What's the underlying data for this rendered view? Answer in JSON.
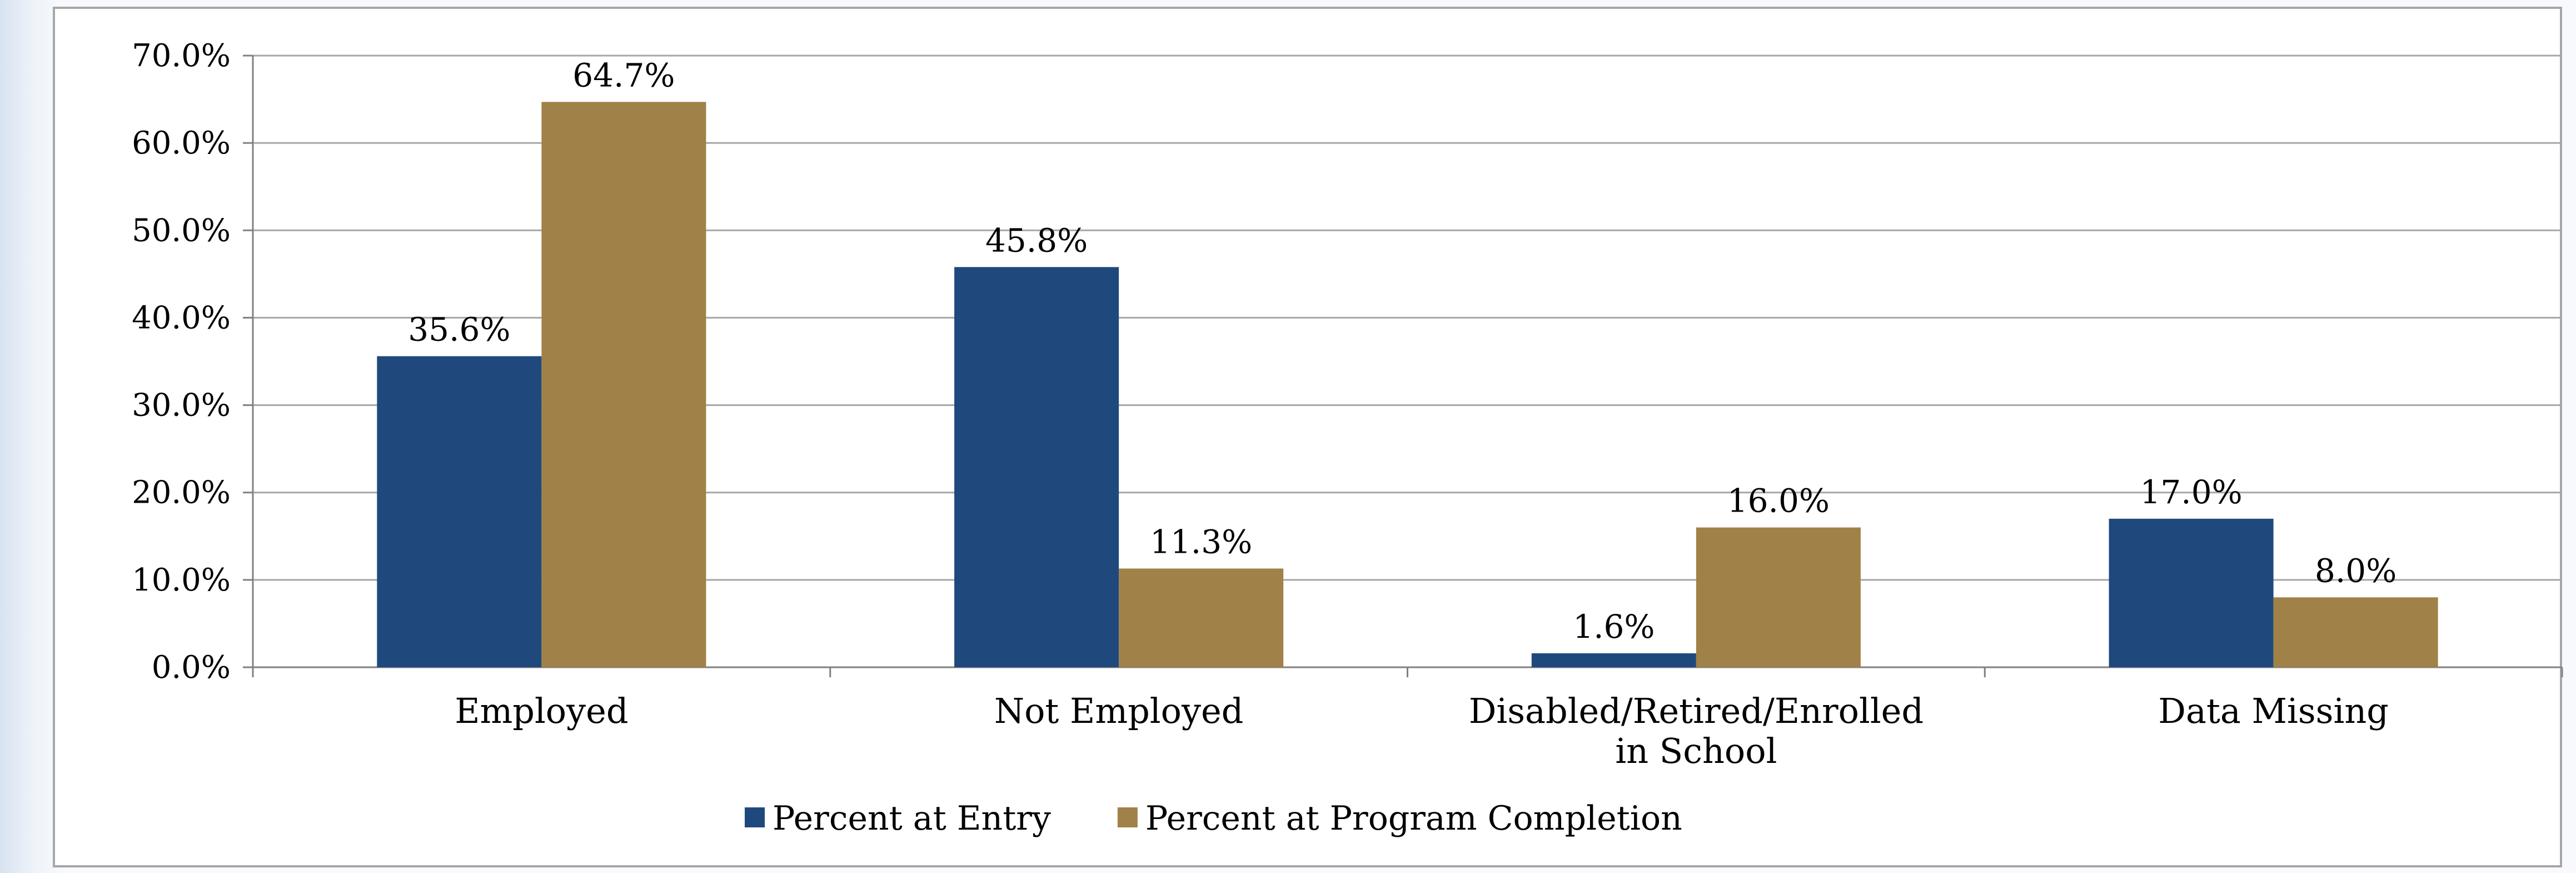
{
  "chart_data": {
    "type": "bar",
    "categories": [
      "Employed",
      "Not Employed",
      "Disabled/Retired/Enrolled in School",
      "Data Missing"
    ],
    "category_lines": [
      [
        "Employed"
      ],
      [
        "Not Employed"
      ],
      [
        "Disabled/Retired/Enrolled",
        "in School"
      ],
      [
        "Data Missing"
      ]
    ],
    "series": [
      {
        "name": "Percent at Entry",
        "color": "#1f497d",
        "values": [
          35.6,
          45.8,
          1.6,
          17.0
        ],
        "labels": [
          "35.6%",
          "45.8%",
          "1.6%",
          "17.0%"
        ]
      },
      {
        "name": "Percent at Program Completion",
        "color": "#a08147",
        "values": [
          64.7,
          11.3,
          16.0,
          8.0
        ],
        "labels": [
          "64.7%",
          "11.3%",
          "16.0%",
          "8.0%"
        ]
      }
    ],
    "yticks": [
      "0.0%",
      "10.0%",
      "20.0%",
      "30.0%",
      "40.0%",
      "50.0%",
      "60.0%",
      "70.0%"
    ],
    "ylim": [
      0,
      70
    ],
    "grid": true,
    "legend": "bottom"
  }
}
